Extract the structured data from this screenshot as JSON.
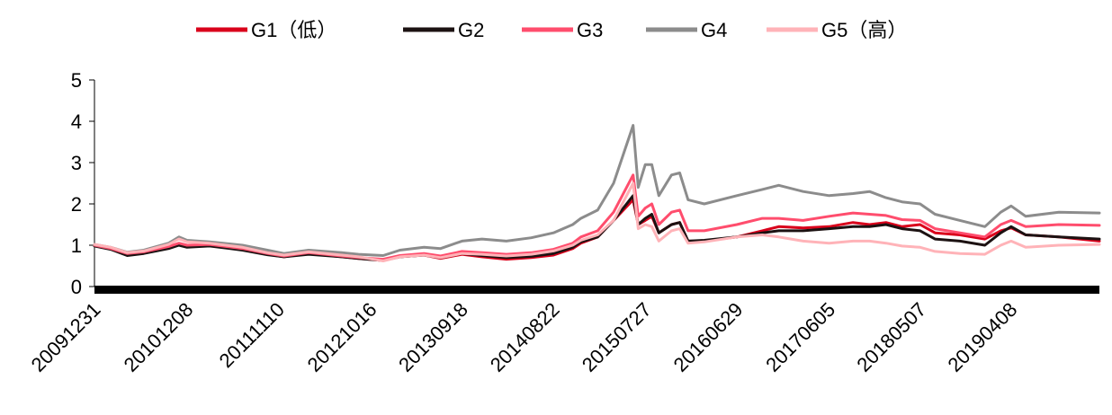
{
  "chart_data": {
    "type": "line",
    "title": "",
    "xlabel": "",
    "ylabel": "",
    "ylim": [
      0,
      5
    ],
    "yticks": [
      0,
      1,
      2,
      3,
      4,
      5
    ],
    "xticks": [
      "20091231",
      "20101208",
      "20111110",
      "20121016",
      "20130918",
      "20140822",
      "20150727",
      "20160629",
      "20170605",
      "20180507",
      "20190408"
    ],
    "grid": false,
    "legend_position": "top",
    "x_range": [
      "20091231",
      "20200228"
    ],
    "series": [
      {
        "name": "G1（低）",
        "color": "#d9001b",
        "points": [
          [
            "20091231",
            1.0
          ],
          [
            "20100301",
            0.92
          ],
          [
            "20100501",
            0.78
          ],
          [
            "20100701",
            0.82
          ],
          [
            "20101001",
            0.95
          ],
          [
            "20101108",
            1.02
          ],
          [
            "20101208",
            0.97
          ],
          [
            "20110301",
            1.0
          ],
          [
            "20110701",
            0.9
          ],
          [
            "20111001",
            0.78
          ],
          [
            "20111201",
            0.72
          ],
          [
            "20120301",
            0.8
          ],
          [
            "20120701",
            0.72
          ],
          [
            "20120901",
            0.68
          ],
          [
            "20121201",
            0.63
          ],
          [
            "20130201",
            0.72
          ],
          [
            "20130501",
            0.76
          ],
          [
            "20130701",
            0.68
          ],
          [
            "20130918",
            0.78
          ],
          [
            "20131201",
            0.72
          ],
          [
            "20140301",
            0.66
          ],
          [
            "20140601",
            0.7
          ],
          [
            "20140822",
            0.76
          ],
          [
            "20141101",
            0.92
          ],
          [
            "20141201",
            1.05
          ],
          [
            "20150201",
            1.2
          ],
          [
            "20150401",
            1.6
          ],
          [
            "20150612",
            2.1
          ],
          [
            "20150701",
            1.5
          ],
          [
            "20150727",
            1.6
          ],
          [
            "20150820",
            1.7
          ],
          [
            "20150915",
            1.3
          ],
          [
            "20151101",
            1.5
          ],
          [
            "20151201",
            1.55
          ],
          [
            "20160101",
            1.1
          ],
          [
            "20160301",
            1.1
          ],
          [
            "20160629",
            1.2
          ],
          [
            "20161001",
            1.35
          ],
          [
            "20161201",
            1.45
          ],
          [
            "20170301",
            1.42
          ],
          [
            "20170605",
            1.45
          ],
          [
            "20170901",
            1.55
          ],
          [
            "20171101",
            1.5
          ],
          [
            "20180101",
            1.55
          ],
          [
            "20180301",
            1.45
          ],
          [
            "20180507",
            1.5
          ],
          [
            "20180701",
            1.3
          ],
          [
            "20181001",
            1.25
          ],
          [
            "20190101",
            1.15
          ],
          [
            "20190301",
            1.35
          ],
          [
            "20190408",
            1.42
          ],
          [
            "20190601",
            1.25
          ],
          [
            "20191001",
            1.2
          ],
          [
            "20200228",
            1.1
          ]
        ]
      },
      {
        "name": "G2",
        "color": "#1c1212",
        "points": [
          [
            "20091231",
            0.98
          ],
          [
            "20100301",
            0.9
          ],
          [
            "20100501",
            0.75
          ],
          [
            "20100701",
            0.8
          ],
          [
            "20101001",
            0.92
          ],
          [
            "20101108",
            1.0
          ],
          [
            "20101208",
            0.95
          ],
          [
            "20110301",
            0.98
          ],
          [
            "20110701",
            0.88
          ],
          [
            "20111001",
            0.77
          ],
          [
            "20111201",
            0.72
          ],
          [
            "20120301",
            0.78
          ],
          [
            "20120701",
            0.72
          ],
          [
            "20120901",
            0.68
          ],
          [
            "20121201",
            0.63
          ],
          [
            "20130201",
            0.72
          ],
          [
            "20130501",
            0.76
          ],
          [
            "20130701",
            0.7
          ],
          [
            "20130918",
            0.8
          ],
          [
            "20131201",
            0.75
          ],
          [
            "20140301",
            0.7
          ],
          [
            "20140601",
            0.73
          ],
          [
            "20140822",
            0.8
          ],
          [
            "20141101",
            0.95
          ],
          [
            "20141201",
            1.08
          ],
          [
            "20150201",
            1.2
          ],
          [
            "20150401",
            1.6
          ],
          [
            "20150612",
            2.2
          ],
          [
            "20150701",
            1.5
          ],
          [
            "20150727",
            1.65
          ],
          [
            "20150820",
            1.75
          ],
          [
            "20150915",
            1.3
          ],
          [
            "20151101",
            1.5
          ],
          [
            "20151201",
            1.55
          ],
          [
            "20160101",
            1.1
          ],
          [
            "20160301",
            1.12
          ],
          [
            "20160629",
            1.2
          ],
          [
            "20161001",
            1.3
          ],
          [
            "20161201",
            1.35
          ],
          [
            "20170301",
            1.35
          ],
          [
            "20170605",
            1.4
          ],
          [
            "20170901",
            1.45
          ],
          [
            "20171101",
            1.45
          ],
          [
            "20180101",
            1.5
          ],
          [
            "20180301",
            1.4
          ],
          [
            "20180507",
            1.35
          ],
          [
            "20180701",
            1.15
          ],
          [
            "20181001",
            1.1
          ],
          [
            "20190101",
            1.0
          ],
          [
            "20190301",
            1.3
          ],
          [
            "20190408",
            1.45
          ],
          [
            "20190601",
            1.25
          ],
          [
            "20191001",
            1.2
          ],
          [
            "20200228",
            1.15
          ]
        ]
      },
      {
        "name": "G3",
        "color": "#ff4d6d",
        "points": [
          [
            "20091231",
            1.0
          ],
          [
            "20100301",
            0.92
          ],
          [
            "20100501",
            0.8
          ],
          [
            "20100701",
            0.84
          ],
          [
            "20101001",
            0.97
          ],
          [
            "20101108",
            1.05
          ],
          [
            "20101208",
            1.0
          ],
          [
            "20110301",
            1.02
          ],
          [
            "20110701",
            0.92
          ],
          [
            "20111001",
            0.8
          ],
          [
            "20111201",
            0.74
          ],
          [
            "20120301",
            0.82
          ],
          [
            "20120701",
            0.74
          ],
          [
            "20120901",
            0.7
          ],
          [
            "20121201",
            0.66
          ],
          [
            "20130201",
            0.75
          ],
          [
            "20130501",
            0.8
          ],
          [
            "20130701",
            0.74
          ],
          [
            "20130918",
            0.85
          ],
          [
            "20131201",
            0.82
          ],
          [
            "20140301",
            0.78
          ],
          [
            "20140601",
            0.82
          ],
          [
            "20140822",
            0.9
          ],
          [
            "20141101",
            1.05
          ],
          [
            "20141201",
            1.2
          ],
          [
            "20150201",
            1.35
          ],
          [
            "20150401",
            1.8
          ],
          [
            "20150612",
            2.7
          ],
          [
            "20150701",
            1.7
          ],
          [
            "20150727",
            1.9
          ],
          [
            "20150820",
            2.0
          ],
          [
            "20150915",
            1.5
          ],
          [
            "20151101",
            1.8
          ],
          [
            "20151201",
            1.85
          ],
          [
            "20160101",
            1.35
          ],
          [
            "20160301",
            1.35
          ],
          [
            "20160629",
            1.5
          ],
          [
            "20161001",
            1.65
          ],
          [
            "20161201",
            1.65
          ],
          [
            "20170301",
            1.6
          ],
          [
            "20170605",
            1.7
          ],
          [
            "20170901",
            1.78
          ],
          [
            "20171101",
            1.75
          ],
          [
            "20180101",
            1.72
          ],
          [
            "20180301",
            1.62
          ],
          [
            "20180507",
            1.6
          ],
          [
            "20180701",
            1.4
          ],
          [
            "20181001",
            1.3
          ],
          [
            "20190101",
            1.2
          ],
          [
            "20190301",
            1.5
          ],
          [
            "20190408",
            1.6
          ],
          [
            "20190601",
            1.45
          ],
          [
            "20191001",
            1.5
          ],
          [
            "20200228",
            1.48
          ]
        ]
      },
      {
        "name": "G4",
        "color": "#8c8c8c",
        "points": [
          [
            "20091231",
            1.02
          ],
          [
            "20100301",
            0.95
          ],
          [
            "20100501",
            0.83
          ],
          [
            "20100701",
            0.88
          ],
          [
            "20101001",
            1.05
          ],
          [
            "20101108",
            1.2
          ],
          [
            "20101208",
            1.12
          ],
          [
            "20110301",
            1.08
          ],
          [
            "20110701",
            1.0
          ],
          [
            "20111001",
            0.88
          ],
          [
            "20111201",
            0.8
          ],
          [
            "20120301",
            0.88
          ],
          [
            "20120701",
            0.82
          ],
          [
            "20120901",
            0.78
          ],
          [
            "20121201",
            0.75
          ],
          [
            "20130201",
            0.88
          ],
          [
            "20130501",
            0.95
          ],
          [
            "20130701",
            0.92
          ],
          [
            "20130918",
            1.1
          ],
          [
            "20131201",
            1.15
          ],
          [
            "20140301",
            1.1
          ],
          [
            "20140601",
            1.18
          ],
          [
            "20140822",
            1.3
          ],
          [
            "20141101",
            1.5
          ],
          [
            "20141201",
            1.65
          ],
          [
            "20150201",
            1.85
          ],
          [
            "20150401",
            2.5
          ],
          [
            "20150612",
            3.9
          ],
          [
            "20150701",
            2.4
          ],
          [
            "20150727",
            2.95
          ],
          [
            "20150820",
            2.95
          ],
          [
            "20150915",
            2.2
          ],
          [
            "20151101",
            2.7
          ],
          [
            "20151201",
            2.75
          ],
          [
            "20160101",
            2.1
          ],
          [
            "20160301",
            2.0
          ],
          [
            "20160629",
            2.2
          ],
          [
            "20161001",
            2.35
          ],
          [
            "20161201",
            2.45
          ],
          [
            "20170301",
            2.3
          ],
          [
            "20170605",
            2.2
          ],
          [
            "20170901",
            2.25
          ],
          [
            "20171101",
            2.3
          ],
          [
            "20180101",
            2.15
          ],
          [
            "20180301",
            2.05
          ],
          [
            "20180507",
            2.0
          ],
          [
            "20180701",
            1.75
          ],
          [
            "20181001",
            1.6
          ],
          [
            "20190101",
            1.45
          ],
          [
            "20190301",
            1.8
          ],
          [
            "20190408",
            1.95
          ],
          [
            "20190601",
            1.7
          ],
          [
            "20191001",
            1.8
          ],
          [
            "20200228",
            1.78
          ]
        ]
      },
      {
        "name": "G5（高）",
        "color": "#ffb3b8",
        "points": [
          [
            "20091231",
            1.02
          ],
          [
            "20100301",
            0.95
          ],
          [
            "20100501",
            0.82
          ],
          [
            "20100701",
            0.86
          ],
          [
            "20101001",
            1.02
          ],
          [
            "20101108",
            1.15
          ],
          [
            "20101208",
            1.08
          ],
          [
            "20110301",
            1.05
          ],
          [
            "20110701",
            0.95
          ],
          [
            "20111001",
            0.82
          ],
          [
            "20111201",
            0.76
          ],
          [
            "20120301",
            0.84
          ],
          [
            "20120701",
            0.76
          ],
          [
            "20120901",
            0.72
          ],
          [
            "20121201",
            0.62
          ],
          [
            "20130201",
            0.72
          ],
          [
            "20130501",
            0.76
          ],
          [
            "20130701",
            0.7
          ],
          [
            "20130918",
            0.8
          ],
          [
            "20131201",
            0.78
          ],
          [
            "20140301",
            0.74
          ],
          [
            "20140601",
            0.78
          ],
          [
            "20140822",
            0.86
          ],
          [
            "20141101",
            1.0
          ],
          [
            "20141201",
            1.12
          ],
          [
            "20150201",
            1.25
          ],
          [
            "20150401",
            1.6
          ],
          [
            "20150612",
            2.5
          ],
          [
            "20150701",
            1.4
          ],
          [
            "20150727",
            1.5
          ],
          [
            "20150820",
            1.45
          ],
          [
            "20150915",
            1.1
          ],
          [
            "20151101",
            1.35
          ],
          [
            "20151201",
            1.4
          ],
          [
            "20160101",
            1.05
          ],
          [
            "20160301",
            1.08
          ],
          [
            "20160629",
            1.2
          ],
          [
            "20161001",
            1.25
          ],
          [
            "20161201",
            1.2
          ],
          [
            "20170301",
            1.1
          ],
          [
            "20170605",
            1.05
          ],
          [
            "20170901",
            1.1
          ],
          [
            "20171101",
            1.1
          ],
          [
            "20180101",
            1.05
          ],
          [
            "20180301",
            0.98
          ],
          [
            "20180507",
            0.95
          ],
          [
            "20180701",
            0.85
          ],
          [
            "20181001",
            0.8
          ],
          [
            "20190101",
            0.78
          ],
          [
            "20190301",
            1.0
          ],
          [
            "20190408",
            1.1
          ],
          [
            "20190601",
            0.95
          ],
          [
            "20191001",
            1.0
          ],
          [
            "20200228",
            1.02
          ]
        ]
      }
    ]
  }
}
